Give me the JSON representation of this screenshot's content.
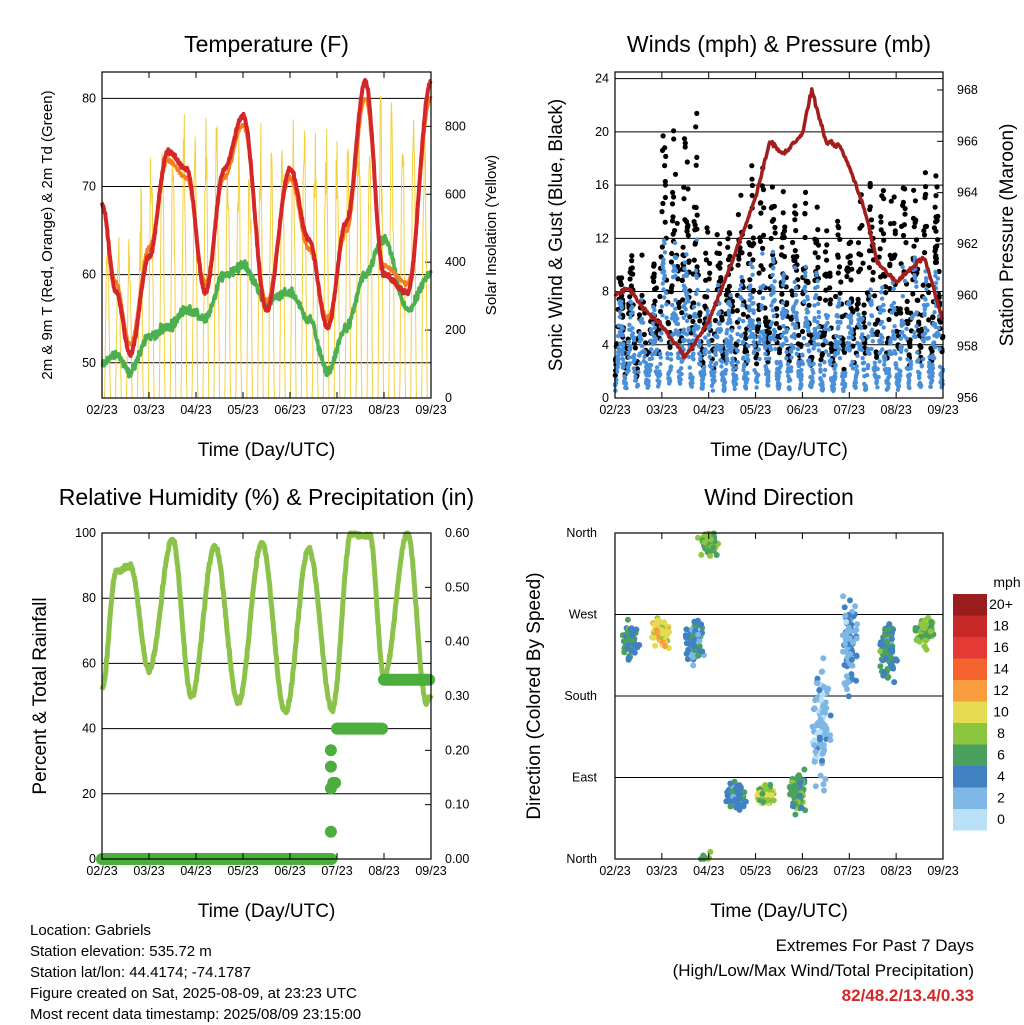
{
  "x_ticks": [
    "02/23",
    "03/23",
    "04/23",
    "05/23",
    "06/23",
    "07/23",
    "08/23",
    "09/23"
  ],
  "x_label": "Time (Day/UTC)",
  "footer": {
    "location": "Location: Gabriels",
    "elevation": "Station elevation: 535.72 m",
    "latlon": "Station lat/lon: 44.4174; -74.1787",
    "created": "Figure created on Sat, 2025-08-09, at 23:23 UTC",
    "recent": "Most recent data timestamp: 2025/08/09 23:15:00"
  },
  "extremes": {
    "title": "Extremes For Past 7 Days",
    "subtitle": "(High/Low/Max Wind/Total Precipitation)",
    "values": "82/48.2/13.4/0.33"
  },
  "chart_data": [
    {
      "type": "line",
      "title": "Temperature (F)",
      "xlabel": "Time (Day/UTC)",
      "ylabel": "2m & 9m T (Red, Orange) & 2m Td (Green)",
      "ylabel_right": "Solar Insolation (Yellow)",
      "x_ticks": [
        "02/23",
        "03/23",
        "04/23",
        "05/23",
        "06/23",
        "07/23",
        "08/23",
        "09/23"
      ],
      "ylim": [
        46,
        83
      ],
      "yticks": [
        50,
        60,
        70,
        80
      ],
      "ylim_right": [
        0,
        960
      ],
      "yticks_right": [
        0,
        200,
        400,
        600,
        800
      ],
      "x": [
        0,
        0.3,
        0.6,
        1.0,
        1.4,
        1.8,
        2.2,
        2.6,
        3.0,
        3.5,
        4.0,
        4.4,
        4.8,
        5.2,
        5.6,
        6.0,
        6.5,
        7.0
      ],
      "series": [
        {
          "name": "2m T",
          "color": "#d62728",
          "values": [
            68,
            58,
            51,
            62,
            74,
            72,
            58,
            72,
            78,
            56,
            72,
            64,
            54,
            66,
            82,
            60,
            58,
            82
          ]
        },
        {
          "name": "9m T",
          "color": "#f57c1f",
          "values": [
            68,
            59,
            52,
            63,
            73,
            71,
            59,
            71,
            77,
            57,
            71,
            63,
            55,
            65,
            80,
            61,
            59,
            80
          ]
        },
        {
          "name": "2m Td",
          "color": "#4caf50",
          "values": [
            50,
            51,
            49,
            53,
            54,
            56,
            55,
            60,
            61,
            57,
            58,
            55,
            49,
            54,
            60,
            64,
            56,
            60
          ]
        },
        {
          "name": "Solar",
          "color": "#f4d03f",
          "values": [
            0,
            500,
            0,
            800,
            0,
            850,
            0,
            780,
            0,
            830,
            0,
            850,
            0,
            860,
            0,
            900,
            0,
            880
          ]
        }
      ]
    },
    {
      "type": "scatter",
      "title": "Winds (mph) & Pressure (mb)",
      "xlabel": "Time (Day/UTC)",
      "ylabel": "Sonic Wind & Gust (Blue, Black)",
      "ylabel_right": "Station Pressure (Maroon)",
      "x_ticks": [
        "02/23",
        "03/23",
        "04/23",
        "05/23",
        "06/23",
        "07/23",
        "08/23",
        "09/23"
      ],
      "ylim": [
        0,
        24.5
      ],
      "yticks": [
        0,
        4,
        8,
        12,
        16,
        20,
        24
      ],
      "ylim_right": [
        956,
        968.7
      ],
      "yticks_right": [
        956,
        958,
        960,
        962,
        964,
        966,
        968
      ],
      "gust_peaks": [
        11,
        22.5,
        14,
        18,
        16,
        15,
        18.5,
        17
      ],
      "wind_peaks": [
        8,
        12,
        9,
        11,
        10,
        8,
        9,
        11
      ],
      "pressure": {
        "x": [
          0,
          0.3,
          0.6,
          1.0,
          1.5,
          2.0,
          2.5,
          3.0,
          3.3,
          3.6,
          4.0,
          4.2,
          4.5,
          4.8,
          5.0,
          5.3,
          5.6,
          6.0,
          6.3,
          6.6,
          7.0
        ],
        "values": [
          960,
          960.3,
          959.5,
          958.8,
          957.6,
          959.0,
          961.3,
          963.8,
          966.0,
          965.5,
          966.3,
          968.0,
          966.0,
          965.8,
          965.0,
          963.5,
          961.3,
          960.5,
          961.0,
          961.5,
          959.0
        ]
      }
    },
    {
      "type": "line",
      "title": "Relative Humidity (%) & Precipitation (in)",
      "xlabel": "Time (Day/UTC)",
      "ylabel": "Percent & Total Rainfall",
      "x_ticks": [
        "02/23",
        "03/23",
        "04/23",
        "05/23",
        "06/23",
        "07/23",
        "08/23",
        "09/23"
      ],
      "ylim": [
        0,
        100
      ],
      "yticks": [
        0,
        20,
        40,
        60,
        80,
        100
      ],
      "ylim_right": [
        0,
        0.6
      ],
      "yticks_right": [
        "0.00",
        "0.10",
        "0.20",
        "0.30",
        "0.40",
        "0.50",
        "0.60"
      ],
      "series": [
        {
          "name": "RH",
          "color": "#8bc34a",
          "x": [
            0,
            0.3,
            0.6,
            1.0,
            1.5,
            1.9,
            2.4,
            2.9,
            3.4,
            3.9,
            4.4,
            4.9,
            5.3,
            5.7,
            6.0,
            6.5,
            6.9,
            7.0
          ],
          "values": [
            52,
            88,
            90,
            58,
            98,
            50,
            96,
            48,
            97,
            45,
            95,
            46,
            100,
            99,
            56,
            100,
            48,
            50
          ]
        },
        {
          "name": "Precip",
          "color": "#4cae3c",
          "x": [
            0,
            4.85,
            4.9,
            5.0,
            5.9,
            6.0,
            7.0
          ],
          "values": [
            0,
            0,
            0.14,
            0.24,
            0.24,
            0.33,
            0.33
          ]
        }
      ]
    },
    {
      "type": "scatter",
      "title": "Wind Direction",
      "xlabel": "Time (Day/UTC)",
      "ylabel": "Direction (Colored By Speed)",
      "x_ticks": [
        "02/23",
        "03/23",
        "04/23",
        "05/23",
        "06/23",
        "07/23",
        "08/23",
        "09/23"
      ],
      "yticks": [
        "North",
        "East",
        "South",
        "West",
        "North"
      ],
      "colorbar_title": "mph",
      "colorbar_labels": [
        "20+",
        "18",
        "16",
        "14",
        "12",
        "10",
        "8",
        "6",
        "4",
        "2",
        "0"
      ],
      "colorbar_colors": [
        "#9b1c1c",
        "#c62828",
        "#e53935",
        "#f4622d",
        "#f89c3d",
        "#e5db50",
        "#8cc63f",
        "#4aa15f",
        "#3f81c1",
        "#7eb7e6",
        "#b9e0f7"
      ],
      "clusters": [
        {
          "x": 0.35,
          "dir": 240,
          "spread": 25,
          "speed": 5
        },
        {
          "x": 1.0,
          "dir": 250,
          "spread": 20,
          "speed": 10
        },
        {
          "x": 1.7,
          "dir": 240,
          "spread": 30,
          "speed": 4
        },
        {
          "x": 2.0,
          "dir": 350,
          "spread": 20,
          "speed": 7
        },
        {
          "x": 2.6,
          "dir": 70,
          "spread": 20,
          "speed": 4
        },
        {
          "x": 3.2,
          "dir": 70,
          "spread": 15,
          "speed": 8
        },
        {
          "x": 3.9,
          "dir": 75,
          "spread": 30,
          "speed": 6
        },
        {
          "x": 4.4,
          "dir": 150,
          "spread": 90,
          "speed": 2
        },
        {
          "x": 5.0,
          "dir": 240,
          "spread": 70,
          "speed": 3
        },
        {
          "x": 5.8,
          "dir": 230,
          "spread": 40,
          "speed": 5
        },
        {
          "x": 6.6,
          "dir": 250,
          "spread": 20,
          "speed": 7
        }
      ]
    }
  ]
}
